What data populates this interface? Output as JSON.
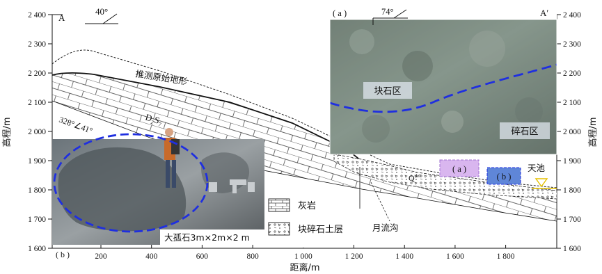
{
  "profile": {
    "start_label": "A",
    "end_label": "A′",
    "top_dip": "40°",
    "photo_dip": "74°",
    "attitude": "328°∠41°",
    "formation": {
      "base": "D",
      "sub": "2",
      "letter": "S",
      "sub2": "7"
    },
    "original_terrain": "推测原始地形",
    "deposit_label": {
      "base": "Q",
      "sup": "del"
    },
    "lake_label": "天池",
    "gully_label": "月流沟"
  },
  "axes": {
    "ylabel": "高程/m",
    "xlabel": "距离/m",
    "y_ticks": [
      "2 400",
      "2 300",
      "2 200",
      "2 100",
      "2 000",
      "1 900",
      "1 800",
      "1 700",
      "1 600"
    ],
    "x_ticks": [
      "200",
      "400",
      "600",
      "800",
      "1 000",
      "1 200",
      "1 400",
      "1 600",
      "1 800"
    ]
  },
  "legend": {
    "limestone": "灰岩",
    "rubble": "块碎石土层"
  },
  "photo_a": {
    "tag": "( a )",
    "block_zone": "块石区",
    "gravel_zone": "碎石区"
  },
  "photo_b": {
    "tag": "( b )",
    "caption": "大孤石3m×2m×2 m"
  },
  "markers": {
    "a": "( a )",
    "b": "( b )"
  },
  "colors": {
    "dash_blue": "#1f2fe0",
    "marker_a": "#d9b6ef",
    "marker_b": "#5f86d8",
    "lake": "#e6c100"
  }
}
